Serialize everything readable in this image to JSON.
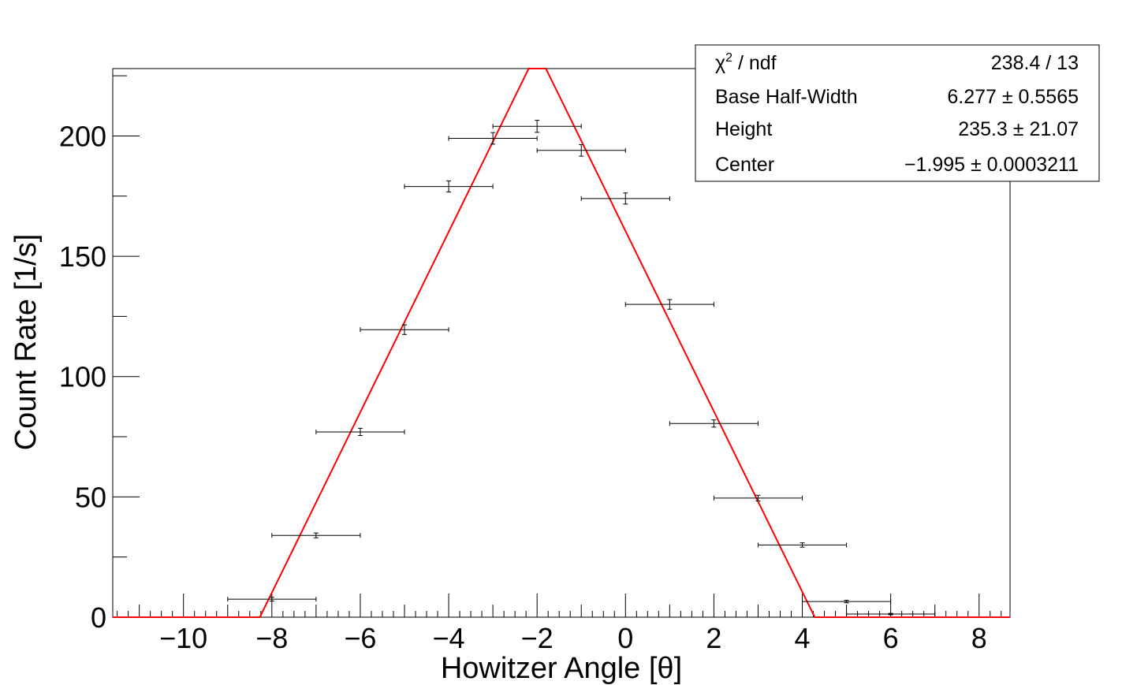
{
  "chart_data": {
    "type": "scatter",
    "title": "",
    "xlabel": "Howitzer Angle [θ]",
    "ylabel": "Count Rate [1/s]",
    "xlim": [
      -11.6,
      8.7
    ],
    "ylim": [
      0,
      228
    ],
    "x_ticks": [
      -10,
      -8,
      -6,
      -4,
      -2,
      0,
      2,
      4,
      6,
      8
    ],
    "x_tick_labels": [
      "−10",
      "−8",
      "−6",
      "−4",
      "−2",
      "0",
      "2",
      "4",
      "6",
      "8"
    ],
    "y_ticks": [
      0,
      50,
      100,
      150,
      200
    ],
    "y_tick_labels": [
      "0",
      "50",
      "100",
      "150",
      "200"
    ],
    "grid": false,
    "legend": "none",
    "series": [
      {
        "kind": "data",
        "color": "#000000",
        "points": [
          {
            "x": -8,
            "y": 7.5,
            "xerr": 1,
            "yerr": 0.8
          },
          {
            "x": -7,
            "y": 34,
            "xerr": 1,
            "yerr": 1.0
          },
          {
            "x": -6,
            "y": 77,
            "xerr": 1,
            "yerr": 1.5
          },
          {
            "x": -5,
            "y": 119.5,
            "xerr": 1,
            "yerr": 2.0
          },
          {
            "x": -4,
            "y": 179,
            "xerr": 1,
            "yerr": 2.3
          },
          {
            "x": -3,
            "y": 199,
            "xerr": 1,
            "yerr": 2.4
          },
          {
            "x": -2,
            "y": 204,
            "xerr": 1,
            "yerr": 2.5
          },
          {
            "x": -1,
            "y": 194,
            "xerr": 1,
            "yerr": 2.4
          },
          {
            "x": 0,
            "y": 174,
            "xerr": 1,
            "yerr": 2.3
          },
          {
            "x": 1,
            "y": 130,
            "xerr": 1,
            "yerr": 2.0
          },
          {
            "x": 2,
            "y": 80.5,
            "xerr": 1,
            "yerr": 1.5
          },
          {
            "x": 3,
            "y": 49.5,
            "xerr": 1,
            "yerr": 1.2
          },
          {
            "x": 4,
            "y": 30,
            "xerr": 1,
            "yerr": 0.9
          },
          {
            "x": 5,
            "y": 6.5,
            "xerr": 1,
            "yerr": 0.5
          },
          {
            "x": 6,
            "y": 1.3,
            "xerr": 1,
            "yerr": 0.3
          }
        ]
      },
      {
        "kind": "fit",
        "color": "#ff0000",
        "function": "triangle",
        "params": {
          "base_half_width": 6.277,
          "height": 235.3,
          "center": -1.995
        }
      }
    ]
  },
  "stats_box": {
    "rows": [
      {
        "label_main": "χ",
        "label_sup": "2",
        "label_rest": " / ndf",
        "value": "238.4 / 13"
      },
      {
        "label_main": "Base Half-Width",
        "value": "6.277 ± 0.5565"
      },
      {
        "label_main": "Height",
        "value": "235.3 ± 21.07"
      },
      {
        "label_main": "Center",
        "value": "−1.995 ± 0.0003211"
      }
    ]
  }
}
